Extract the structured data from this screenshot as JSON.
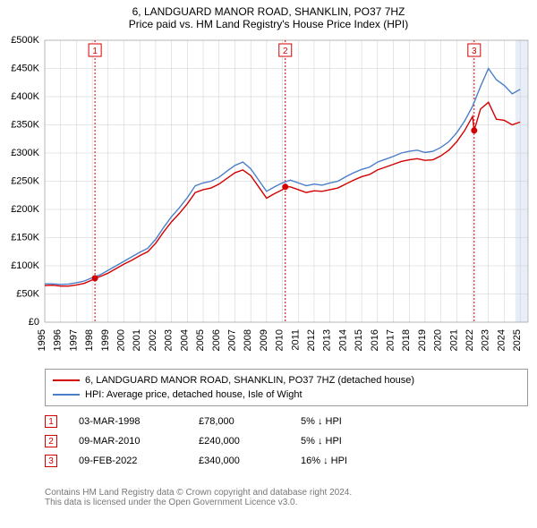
{
  "title_line1": "6, LANDGUARD MANOR ROAD, SHANKLIN, PO37 7HZ",
  "title_line2": "Price paid vs. HM Land Registry's House Price Index (HPI)",
  "chart": {
    "type": "line",
    "background_color": "#ffffff",
    "grid_color": "#cccccc",
    "border_color": "#888888",
    "x_min": 1995,
    "x_max": 2025.5,
    "y_min": 0,
    "y_max": 500000,
    "y_ticks": [
      0,
      50000,
      100000,
      150000,
      200000,
      250000,
      300000,
      350000,
      400000,
      450000,
      500000
    ],
    "y_tick_labels": [
      "£0",
      "£50K",
      "£100K",
      "£150K",
      "£200K",
      "£250K",
      "£300K",
      "£350K",
      "£400K",
      "£450K",
      "£500K"
    ],
    "x_ticks": [
      1995,
      1996,
      1997,
      1998,
      1999,
      2000,
      2001,
      2002,
      2003,
      2004,
      2005,
      2006,
      2007,
      2008,
      2009,
      2010,
      2011,
      2012,
      2013,
      2014,
      2015,
      2016,
      2017,
      2018,
      2019,
      2020,
      2021,
      2022,
      2023,
      2024,
      2025
    ],
    "label_fontsize": 11,
    "series": [
      {
        "name": "price_paid",
        "label": "6, LANDGUARD MANOR ROAD, SHANKLIN, PO37 7HZ (detached house)",
        "color": "#d40000",
        "line_width": 1.4,
        "points": [
          [
            1995.0,
            65000
          ],
          [
            1995.5,
            65500
          ],
          [
            1996.0,
            64000
          ],
          [
            1996.5,
            64000
          ],
          [
            1997.0,
            66000
          ],
          [
            1997.5,
            69000
          ],
          [
            1998.0,
            75000
          ],
          [
            1998.17,
            78000
          ],
          [
            1998.5,
            81000
          ],
          [
            1999.0,
            87000
          ],
          [
            1999.5,
            95000
          ],
          [
            2000.0,
            103000
          ],
          [
            2000.5,
            110000
          ],
          [
            2001.0,
            118000
          ],
          [
            2001.5,
            125000
          ],
          [
            2002.0,
            140000
          ],
          [
            2002.5,
            160000
          ],
          [
            2003.0,
            178000
          ],
          [
            2003.5,
            193000
          ],
          [
            2004.0,
            210000
          ],
          [
            2004.5,
            230000
          ],
          [
            2005.0,
            235000
          ],
          [
            2005.5,
            238000
          ],
          [
            2006.0,
            245000
          ],
          [
            2006.5,
            255000
          ],
          [
            2007.0,
            265000
          ],
          [
            2007.5,
            270000
          ],
          [
            2008.0,
            260000
          ],
          [
            2008.5,
            240000
          ],
          [
            2009.0,
            220000
          ],
          [
            2009.5,
            228000
          ],
          [
            2010.0,
            235000
          ],
          [
            2010.18,
            240000
          ],
          [
            2010.5,
            240000
          ],
          [
            2011.0,
            235000
          ],
          [
            2011.5,
            230000
          ],
          [
            2012.0,
            233000
          ],
          [
            2012.5,
            232000
          ],
          [
            2013.0,
            235000
          ],
          [
            2013.5,
            238000
          ],
          [
            2014.0,
            245000
          ],
          [
            2014.5,
            252000
          ],
          [
            2015.0,
            258000
          ],
          [
            2015.5,
            262000
          ],
          [
            2016.0,
            270000
          ],
          [
            2016.5,
            275000
          ],
          [
            2017.0,
            280000
          ],
          [
            2017.5,
            285000
          ],
          [
            2018.0,
            288000
          ],
          [
            2018.5,
            290000
          ],
          [
            2019.0,
            287000
          ],
          [
            2019.5,
            288000
          ],
          [
            2020.0,
            295000
          ],
          [
            2020.5,
            305000
          ],
          [
            2021.0,
            320000
          ],
          [
            2021.5,
            340000
          ],
          [
            2022.0,
            365000
          ],
          [
            2022.1,
            340000
          ],
          [
            2022.5,
            378000
          ],
          [
            2023.0,
            390000
          ],
          [
            2023.5,
            360000
          ],
          [
            2024.0,
            358000
          ],
          [
            2024.5,
            350000
          ],
          [
            2025.0,
            355000
          ]
        ]
      },
      {
        "name": "hpi",
        "label": "HPI: Average price, detached house, Isle of Wight",
        "color": "#4a7ec8",
        "line_width": 1.4,
        "points": [
          [
            1995.0,
            68000
          ],
          [
            1995.5,
            68000
          ],
          [
            1996.0,
            67000
          ],
          [
            1996.5,
            67500
          ],
          [
            1997.0,
            70000
          ],
          [
            1997.5,
            73000
          ],
          [
            1998.0,
            79000
          ],
          [
            1998.5,
            84000
          ],
          [
            1999.0,
            92000
          ],
          [
            1999.5,
            100000
          ],
          [
            2000.0,
            108000
          ],
          [
            2000.5,
            116000
          ],
          [
            2001.0,
            124000
          ],
          [
            2001.5,
            131000
          ],
          [
            2002.0,
            147000
          ],
          [
            2002.5,
            168000
          ],
          [
            2003.0,
            187000
          ],
          [
            2003.5,
            203000
          ],
          [
            2004.0,
            221000
          ],
          [
            2004.5,
            242000
          ],
          [
            2005.0,
            247000
          ],
          [
            2005.5,
            250000
          ],
          [
            2006.0,
            257000
          ],
          [
            2006.5,
            268000
          ],
          [
            2007.0,
            278000
          ],
          [
            2007.5,
            284000
          ],
          [
            2008.0,
            272000
          ],
          [
            2008.5,
            252000
          ],
          [
            2009.0,
            232000
          ],
          [
            2009.5,
            240000
          ],
          [
            2010.0,
            247000
          ],
          [
            2010.5,
            252000
          ],
          [
            2011.0,
            247000
          ],
          [
            2011.5,
            242000
          ],
          [
            2012.0,
            245000
          ],
          [
            2012.5,
            243000
          ],
          [
            2013.0,
            247000
          ],
          [
            2013.5,
            250000
          ],
          [
            2014.0,
            258000
          ],
          [
            2014.5,
            265000
          ],
          [
            2015.0,
            271000
          ],
          [
            2015.5,
            275000
          ],
          [
            2016.0,
            284000
          ],
          [
            2016.5,
            289000
          ],
          [
            2017.0,
            294000
          ],
          [
            2017.5,
            300000
          ],
          [
            2018.0,
            303000
          ],
          [
            2018.5,
            305000
          ],
          [
            2019.0,
            301000
          ],
          [
            2019.5,
            303000
          ],
          [
            2020.0,
            310000
          ],
          [
            2020.5,
            320000
          ],
          [
            2021.0,
            336000
          ],
          [
            2021.5,
            357000
          ],
          [
            2022.0,
            383000
          ],
          [
            2022.5,
            418000
          ],
          [
            2023.0,
            450000
          ],
          [
            2023.5,
            430000
          ],
          [
            2024.0,
            420000
          ],
          [
            2024.5,
            405000
          ],
          [
            2025.0,
            413000
          ]
        ]
      }
    ],
    "sale_markers": [
      {
        "n": 1,
        "color": "#d40000",
        "date_x": 1998.17,
        "price": 78000
      },
      {
        "n": 2,
        "color": "#d40000",
        "date_x": 2010.18,
        "price": 240000
      },
      {
        "n": 3,
        "color": "#d40000",
        "date_x": 2022.1,
        "price": 340000
      }
    ],
    "future_shade": {
      "from_x": 2024.7,
      "to_x": 2025.5,
      "color": "#e8eef7"
    }
  },
  "legend": {
    "items": [
      {
        "color": "#d40000",
        "label": "6, LANDGUARD MANOR ROAD, SHANKLIN, PO37 7HZ (detached house)"
      },
      {
        "color": "#4a7ec8",
        "label": "HPI: Average price, detached house, Isle of Wight"
      }
    ]
  },
  "sales": [
    {
      "n": "1",
      "color": "#d40000",
      "date": "03-MAR-1998",
      "price": "£78,000",
      "delta": "5% ↓ HPI"
    },
    {
      "n": "2",
      "color": "#d40000",
      "date": "09-MAR-2010",
      "price": "£240,000",
      "delta": "5% ↓ HPI"
    },
    {
      "n": "3",
      "color": "#d40000",
      "date": "09-FEB-2022",
      "price": "£340,000",
      "delta": "16% ↓ HPI"
    }
  ],
  "footer_line1": "Contains HM Land Registry data © Crown copyright and database right 2024.",
  "footer_line2": "This data is licensed under the Open Government Licence v3.0."
}
